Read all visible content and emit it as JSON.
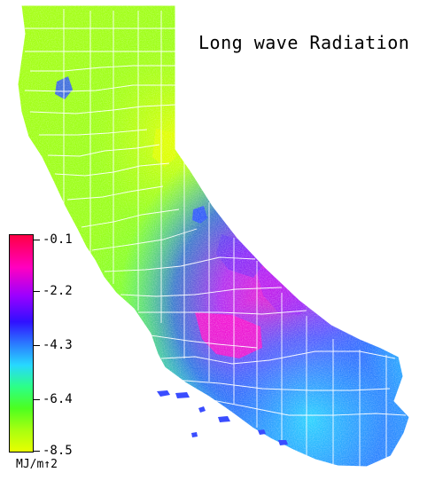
{
  "map": {
    "title": "Long wave Radiation",
    "units": "MJ/m↑2",
    "legend_ticks": [
      "-0.1",
      "-2.2",
      "-4.3",
      "-6.4",
      "-8.5"
    ],
    "colors": {
      "background": "#ffffff",
      "borders": "#ffffff",
      "north_green": "#9dff12",
      "yellow_green": "#d7ff00",
      "cyan_band": "#22d7ff",
      "blue_band": "#2b66ff",
      "magenta_peak": "#ff00c8",
      "max_color": "#ff0044"
    }
  }
}
